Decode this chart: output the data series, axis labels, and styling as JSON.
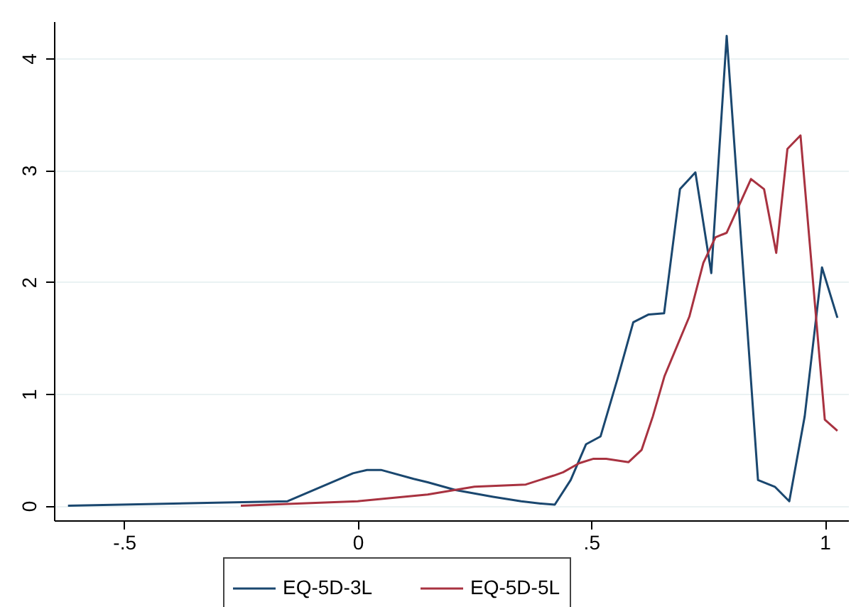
{
  "chart_data": {
    "type": "line",
    "xlim": [
      -0.65,
      1.05
    ],
    "ylim": [
      -0.13,
      4.33
    ],
    "xticks": [
      {
        "value": -0.5,
        "label": "-.5"
      },
      0,
      {
        "value": 0.5,
        "label": ".5"
      },
      1
    ],
    "yticks": [
      0,
      1,
      2,
      3,
      4
    ],
    "grid": "y",
    "legend": "bottom",
    "line_style": "solid",
    "series": [
      {
        "name": "EQ-5D-3L",
        "color": "#1a476f",
        "x": [
          -0.62,
          -0.15,
          -0.01,
          0.02,
          0.05,
          0.12,
          0.15,
          0.21,
          0.29,
          0.35,
          0.392,
          0.422,
          0.456,
          0.489,
          0.52,
          0.556,
          0.59,
          0.623,
          0.656,
          0.69,
          0.723,
          0.757,
          0.79,
          0.857,
          0.893,
          0.924,
          0.957,
          0.994,
          1.027
        ],
        "values": [
          0,
          0.04,
          0.29,
          0.32,
          0.32,
          0.24,
          0.21,
          0.14,
          0.08,
          0.04,
          0.02,
          0.01,
          0.23,
          0.55,
          0.62,
          1.13,
          1.64,
          1.71,
          1.72,
          2.83,
          2.98,
          2.08,
          4.2,
          0.23,
          0.17,
          0.04,
          0.8,
          2.13,
          1.68
        ]
      },
      {
        "name": "EQ-5D-5L",
        "color": "#a83240",
        "x": [
          -0.25,
          0,
          0.15,
          0.25,
          0.36,
          0.42,
          0.44,
          0.474,
          0.505,
          0.532,
          0.58,
          0.608,
          0.632,
          0.657,
          0.71,
          0.74,
          0.766,
          0.79,
          0.842,
          0.87,
          0.896,
          0.92,
          0.948,
          1.0,
          1.027
        ],
        "values": [
          0,
          0.04,
          0.1,
          0.17,
          0.19,
          0.27,
          0.3,
          0.38,
          0.42,
          0.42,
          0.39,
          0.5,
          0.8,
          1.16,
          1.69,
          2.17,
          2.4,
          2.44,
          2.92,
          2.83,
          2.26,
          3.19,
          3.31,
          0.77,
          0.67
        ]
      }
    ]
  }
}
